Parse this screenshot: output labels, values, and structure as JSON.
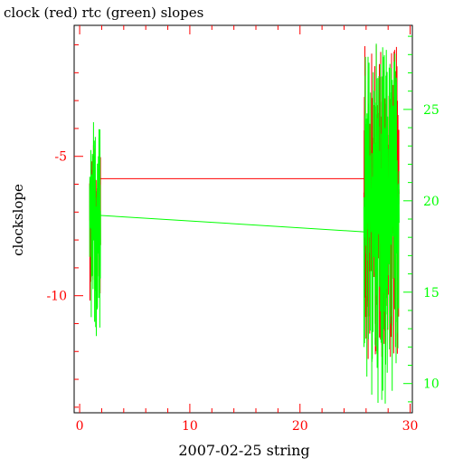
{
  "chart_data": {
    "type": "line",
    "title": "clock (red) rtc (green) slopes",
    "xlabel": "2007-02-25 string",
    "ylabel": "clockslope",
    "x_ticks": [
      "0",
      "10",
      "20",
      "30"
    ],
    "y_left_ticks": [
      "-5",
      "-10"
    ],
    "y_right_ticks": [
      "25",
      "20",
      "15",
      "10"
    ],
    "xlim": [
      -0.5,
      30.2
    ],
    "ylim_left": [
      -14.2,
      -0.3
    ],
    "ylim_right": [
      8.4,
      29.6
    ],
    "colors": {
      "clock": "#ff0000",
      "rtc": "#00ff00",
      "frame": "#000000"
    },
    "series": [
      {
        "axis": "left",
        "color": "#ff0000",
        "clusters": [
          {
            "x_range": [
              0.9,
              1.9
            ],
            "y_min": -10.2,
            "y_max": -4.6,
            "center": -7.0
          },
          {
            "x_range": [
              25.8,
              29.0
            ],
            "y_min": -12.3,
            "y_max": -1.0,
            "center": -6.3
          }
        ],
        "bridge": {
          "from": [
            1.9,
            -5.8
          ],
          "to": [
            25.8,
            -5.8
          ]
        }
      },
      {
        "axis": "right",
        "color": "#00ff00",
        "clusters": [
          {
            "x_range": [
              0.9,
              1.9
            ],
            "y_min": 12.6,
            "y_max": 24.3,
            "center": 19.0
          },
          {
            "x_range": [
              25.8,
              29.0
            ],
            "y_min": 8.9,
            "y_max": 28.6,
            "center": 19.5
          }
        ],
        "bridge": {
          "from": [
            1.9,
            19.2
          ],
          "to": [
            25.8,
            18.3
          ]
        }
      }
    ]
  }
}
